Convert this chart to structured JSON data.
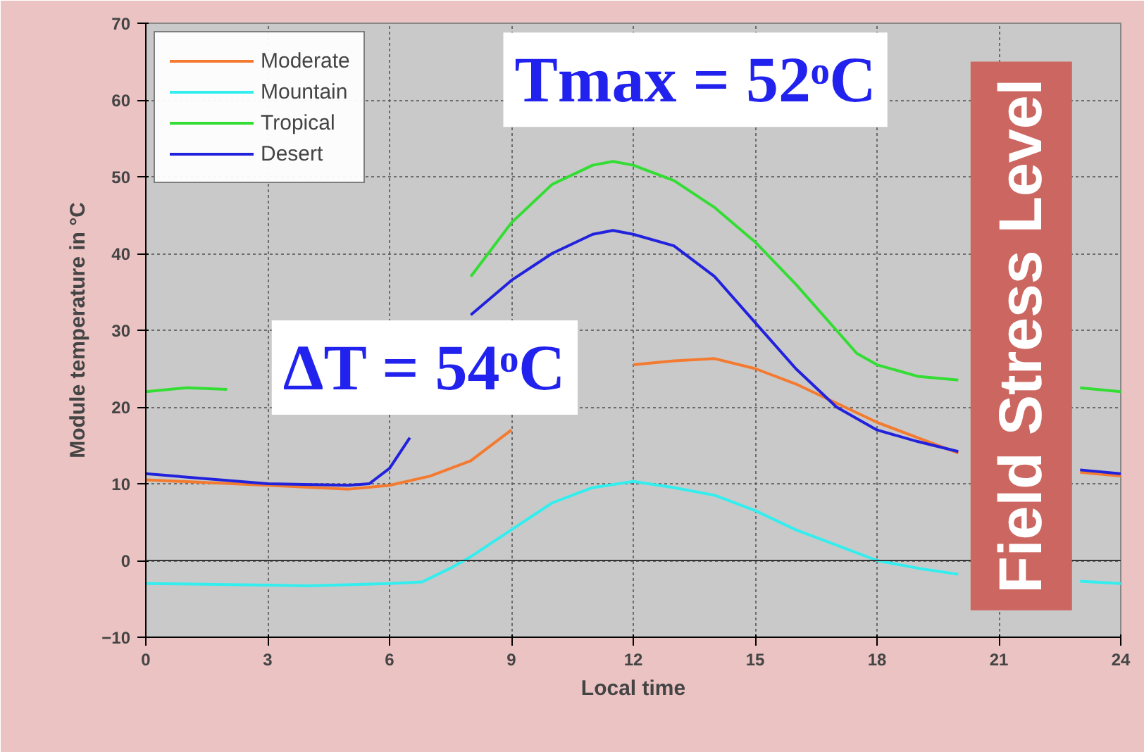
{
  "chart_data": {
    "type": "line",
    "xlabel": "Local time",
    "ylabel": "Module temperature in °C",
    "xlim": [
      0,
      24
    ],
    "xticks": [
      0,
      3,
      6,
      9,
      12,
      15,
      18,
      21,
      24
    ],
    "ylim": [
      -10,
      70
    ],
    "yticks": [
      -10,
      0,
      10,
      20,
      30,
      40,
      50,
      60,
      70
    ],
    "grid": true,
    "legend": "top left",
    "line_style": "solid",
    "series": [
      {
        "name": "Moderate",
        "color": "#f47a30",
        "x": [
          0,
          3,
          5,
          6,
          7,
          8,
          9,
          10,
          11,
          12,
          13,
          14,
          15,
          16,
          17,
          18,
          19,
          20,
          21,
          22,
          23,
          24
        ],
        "values": [
          10.5,
          9.8,
          9.3,
          9.8,
          11,
          13,
          17,
          null,
          null,
          25.5,
          26,
          26.3,
          25,
          23,
          20.5,
          18,
          16,
          14,
          null,
          null,
          11.5,
          11
        ]
      },
      {
        "name": "Mountain",
        "color": "#33eeee",
        "x": [
          0,
          3,
          4,
          6,
          6.8,
          7.5,
          8,
          9,
          10,
          11,
          12,
          13,
          14,
          15,
          16,
          17,
          18,
          19,
          20,
          21,
          22,
          23,
          24
        ],
        "values": [
          -3,
          -3.2,
          -3.3,
          -3,
          -2.8,
          -1,
          0.5,
          4,
          7.5,
          9.5,
          10.3,
          9.5,
          8.5,
          6.5,
          4,
          2,
          0,
          -1,
          -1.8,
          null,
          null,
          -2.7,
          -3
        ]
      },
      {
        "name": "Tropical",
        "color": "#33dd33",
        "x": [
          0,
          1,
          2,
          3,
          6,
          7,
          7.5,
          8,
          9,
          10,
          11,
          11.5,
          12,
          13,
          14,
          15,
          16,
          17,
          17.5,
          18,
          19,
          20,
          21,
          22,
          23,
          24
        ],
        "values": [
          22,
          22.5,
          22.3,
          null,
          null,
          null,
          null,
          37,
          44,
          49,
          51.5,
          52,
          51.5,
          49.5,
          46,
          41.5,
          36,
          30,
          27,
          25.5,
          24,
          23.5,
          null,
          null,
          22.5,
          22
        ]
      },
      {
        "name": "Desert",
        "color": "#2222dd",
        "x": [
          0,
          3,
          5,
          5.5,
          6,
          6.5,
          7,
          7.5,
          8,
          9,
          10,
          11,
          11.5,
          12,
          13,
          14,
          15,
          16,
          17,
          18,
          19,
          20,
          21,
          22,
          23,
          24
        ],
        "values": [
          11.3,
          10,
          9.8,
          10,
          12,
          16,
          null,
          null,
          32,
          36.5,
          40,
          42.5,
          43,
          42.5,
          41,
          37,
          31,
          25,
          20,
          17,
          15.5,
          14.2,
          null,
          null,
          11.8,
          11.3
        ]
      }
    ],
    "annotations": [
      "Tmax = 52ᵒC",
      "ΔT = 54ᵒC",
      "Field Stress Level"
    ]
  }
}
